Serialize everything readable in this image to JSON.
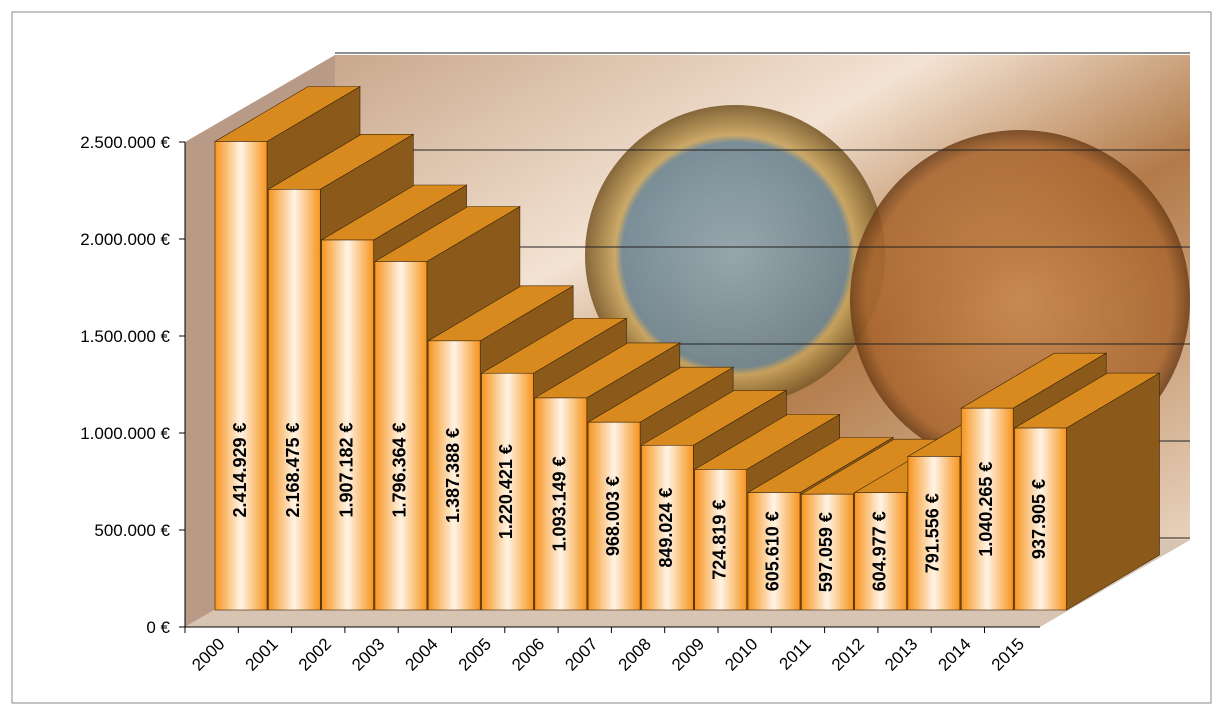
{
  "chart_data": {
    "type": "bar3d",
    "categories": [
      "2000",
      "2001",
      "2002",
      "2003",
      "2004",
      "2005",
      "2006",
      "2007",
      "2008",
      "2009",
      "2010",
      "2011",
      "2012",
      "2013",
      "2014",
      "2015"
    ],
    "values": [
      2414929,
      2168475,
      1907182,
      1796364,
      1387388,
      1220421,
      1093149,
      968003,
      849024,
      724819,
      605610,
      597059,
      604977,
      791556,
      1040265,
      937905
    ],
    "value_labels": [
      "2.414.929 €",
      "2.168.475 €",
      "1.907.182 €",
      "1.796.364 €",
      "1.387.388 €",
      "1.220.421 €",
      "1.093.149 €",
      "968.003 €",
      "849.024 €",
      "724.819 €",
      "605.610 €",
      "597.059 €",
      "604.977 €",
      "791.556 €",
      "1.040.265 €",
      "937.905 €"
    ],
    "color": "#f7941d",
    "ylim": [
      0,
      2500000
    ],
    "yticks": [
      {
        "value": 0,
        "label": "0 €"
      },
      {
        "value": 500000,
        "label": "500.000 €"
      },
      {
        "value": 1000000,
        "label": "1.000.000 €"
      },
      {
        "value": 1500000,
        "label": "1.500.000 €"
      },
      {
        "value": 2000000,
        "label": "2.000.000 €"
      },
      {
        "value": 2500000,
        "label": "2.500.000 €"
      }
    ],
    "grid": true
  }
}
